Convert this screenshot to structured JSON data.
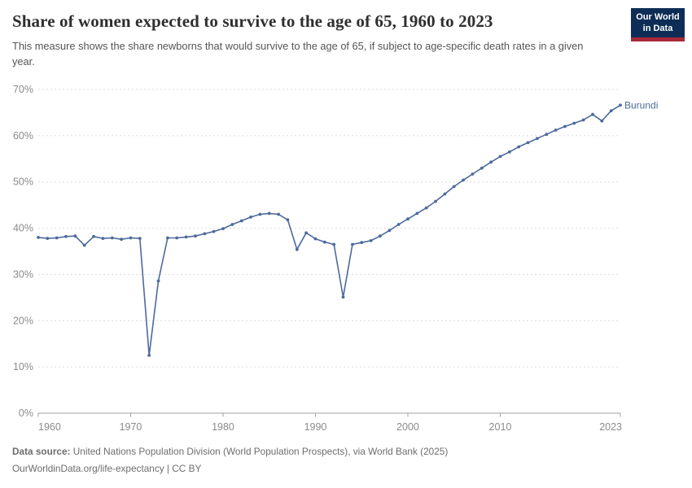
{
  "header": {
    "title": "Share of women expected to survive to the age of 65, 1960 to 2023",
    "subtitle": "This measure shows the share newborns that would survive to the age of 65, if subject to age-specific death rates in a given year.",
    "logo": {
      "line1": "Our World",
      "line2": "in Data"
    }
  },
  "chart_data": {
    "type": "line",
    "title": "Share of women expected to survive to the age of 65, 1960 to 2023",
    "xlabel": "",
    "ylabel": "",
    "xlim": [
      1960,
      2023
    ],
    "ylim": [
      0,
      70
    ],
    "x_ticks": [
      1960,
      1970,
      1980,
      1990,
      2000,
      2010,
      2023
    ],
    "y_ticks": [
      0,
      10,
      20,
      30,
      40,
      50,
      60,
      70
    ],
    "y_tick_suffix": "%",
    "grid": "horizontal-dashed",
    "legend_position": "end-of-line-label",
    "x": [
      1960,
      1961,
      1962,
      1963,
      1964,
      1965,
      1966,
      1967,
      1968,
      1969,
      1970,
      1971,
      1972,
      1973,
      1974,
      1975,
      1976,
      1977,
      1978,
      1979,
      1980,
      1981,
      1982,
      1983,
      1984,
      1985,
      1986,
      1987,
      1988,
      1989,
      1990,
      1991,
      1992,
      1993,
      1994,
      1995,
      1996,
      1997,
      1998,
      1999,
      2000,
      2001,
      2002,
      2003,
      2004,
      2005,
      2006,
      2007,
      2008,
      2009,
      2010,
      2011,
      2012,
      2013,
      2014,
      2015,
      2016,
      2017,
      2018,
      2019,
      2020,
      2021,
      2022,
      2023
    ],
    "series": [
      {
        "name": "Burundi",
        "color": "#4C6A9C",
        "values": [
          38.0,
          37.8,
          37.9,
          38.2,
          38.3,
          36.3,
          38.2,
          37.8,
          37.9,
          37.6,
          37.9,
          37.8,
          12.5,
          28.6,
          37.9,
          37.9,
          38.1,
          38.3,
          38.8,
          39.3,
          39.9,
          40.8,
          41.6,
          42.4,
          43.0,
          43.2,
          43.0,
          41.8,
          35.4,
          39.0,
          37.7,
          37.0,
          36.5,
          25.1,
          36.5,
          36.9,
          37.3,
          38.3,
          39.5,
          40.8,
          42.0,
          43.2,
          44.4,
          45.8,
          47.4,
          49.0,
          50.4,
          51.7,
          53.0,
          54.3,
          55.5,
          56.5,
          57.6,
          58.5,
          59.4,
          60.3,
          61.2,
          62.0,
          62.7,
          63.4,
          64.6,
          63.2,
          65.4,
          66.6
        ]
      }
    ]
  },
  "colors": {
    "line": "#4C6A9C",
    "gridline": "#dcdcdc",
    "axis": "#a1a1a1",
    "tick_label": "#8b8b8b",
    "logo_bg": "#0d2d56",
    "logo_bar": "#a8293a"
  },
  "footer": {
    "datasource_label": "Data source:",
    "datasource_text": " United Nations Population Division (World Population Prospects), via World Bank (2025)",
    "link_text": "OurWorldinData.org/life-expectancy",
    "license_text": " | CC BY"
  }
}
